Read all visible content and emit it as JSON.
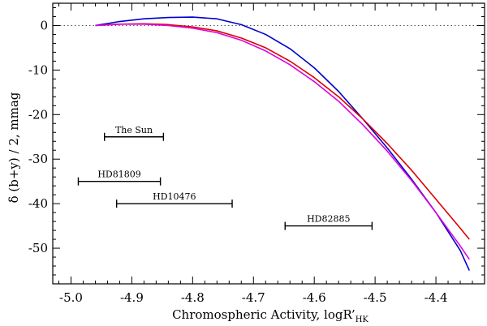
{
  "chart_data": {
    "type": "line",
    "title": "",
    "xlabel_main": "Chromospheric Activity,  logR’",
    "xlabel_sub": "HK",
    "ylabel": "δ (b+y) / 2, mmag",
    "xlim": [
      -5.03,
      -4.32
    ],
    "ylim": [
      -58,
      5
    ],
    "xticks": [
      -5.0,
      -4.9,
      -4.8,
      -4.7,
      -4.6,
      -4.5,
      -4.4
    ],
    "xtick_labels": [
      "-5.0",
      "-4.9",
      "-4.8",
      "-4.7",
      "-4.6",
      "-4.5",
      "-4.4"
    ],
    "yticks": [
      0,
      -10,
      -20,
      -30,
      -40,
      -50
    ],
    "ytick_labels": [
      "0",
      "-10",
      "-20",
      "-30",
      "-40",
      "-50"
    ],
    "reference_line": {
      "y": 0,
      "style": "dotted",
      "color": "#555555"
    },
    "series": [
      {
        "color": "#0000cc",
        "x": [
          -4.96,
          -4.92,
          -4.88,
          -4.84,
          -4.8,
          -4.76,
          -4.72,
          -4.68,
          -4.64,
          -4.6,
          -4.56,
          -4.52,
          -4.48,
          -4.44,
          -4.4,
          -4.36,
          -4.345
        ],
        "y": [
          0.0,
          0.9,
          1.5,
          1.8,
          1.9,
          1.5,
          0.2,
          -2.0,
          -5.2,
          -9.5,
          -14.8,
          -21.0,
          -27.5,
          -34.5,
          -42.0,
          -50.5,
          -55.0
        ]
      },
      {
        "color": "#dd0000",
        "x": [
          -4.96,
          -4.92,
          -4.88,
          -4.84,
          -4.8,
          -4.76,
          -4.72,
          -4.68,
          -4.64,
          -4.6,
          -4.56,
          -4.52,
          -4.48,
          -4.44,
          -4.4,
          -4.36,
          -4.345
        ],
        "y": [
          0.0,
          0.3,
          0.4,
          0.2,
          -0.3,
          -1.2,
          -2.8,
          -5.0,
          -8.0,
          -11.7,
          -16.0,
          -21.0,
          -26.5,
          -32.5,
          -39.0,
          -45.5,
          -48.0
        ]
      },
      {
        "color": "#dd00dd",
        "x": [
          -4.96,
          -4.92,
          -4.88,
          -4.84,
          -4.8,
          -4.76,
          -4.72,
          -4.68,
          -4.64,
          -4.6,
          -4.56,
          -4.52,
          -4.48,
          -4.44,
          -4.4,
          -4.36,
          -4.345
        ],
        "y": [
          0.0,
          0.3,
          0.3,
          0.0,
          -0.6,
          -1.6,
          -3.3,
          -5.7,
          -8.8,
          -12.6,
          -17.0,
          -22.3,
          -28.2,
          -34.8,
          -42.0,
          -49.5,
          -52.5
        ]
      }
    ],
    "ranges": [
      {
        "label": "The Sun",
        "x1": -4.945,
        "x2": -4.848,
        "y": -25.0
      },
      {
        "label": "HD81809",
        "x1": -4.988,
        "x2": -4.853,
        "y": -35.0
      },
      {
        "label": "HD10476",
        "x1": -4.925,
        "x2": -4.735,
        "y": -40.0
      },
      {
        "label": "HD82885",
        "x1": -4.648,
        "x2": -4.505,
        "y": -45.0
      }
    ]
  }
}
